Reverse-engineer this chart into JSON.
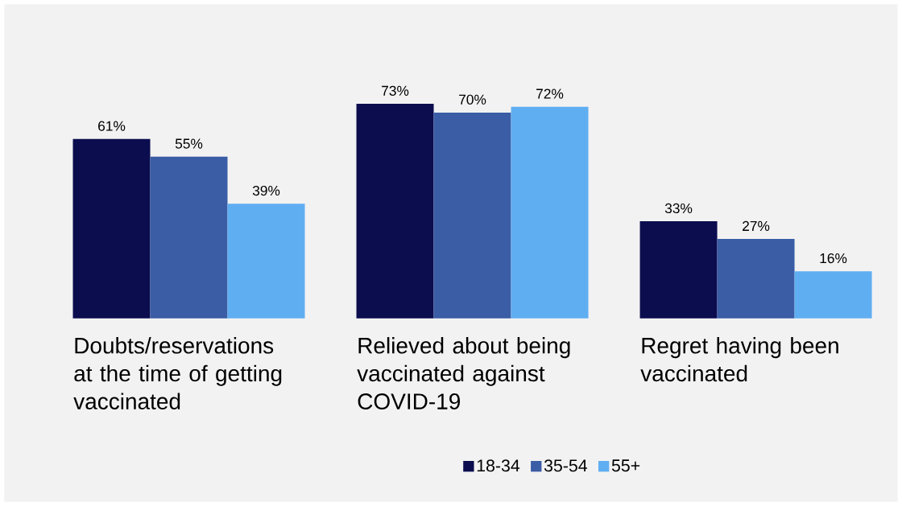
{
  "chart_data": {
    "type": "bar",
    "categories": [
      "Doubts/reservations at the time of getting vaccinated",
      "Relieved about being vaccinated against COVID-19",
      "Regret having been vaccinated"
    ],
    "series": [
      {
        "name": "18-34",
        "color": "#0b0d4f",
        "values": [
          61,
          73,
          33
        ],
        "value_labels": [
          "61%",
          "73%",
          "33%"
        ]
      },
      {
        "name": "35-54",
        "color": "#3a5da6",
        "values": [
          55,
          70,
          27
        ],
        "value_labels": [
          "55%",
          "70%",
          "27%"
        ]
      },
      {
        "name": "55+",
        "color": "#60aef2",
        "values": [
          39,
          72,
          16
        ],
        "value_labels": [
          "39%",
          "72%",
          "16%"
        ]
      }
    ],
    "legend": "bottom"
  }
}
